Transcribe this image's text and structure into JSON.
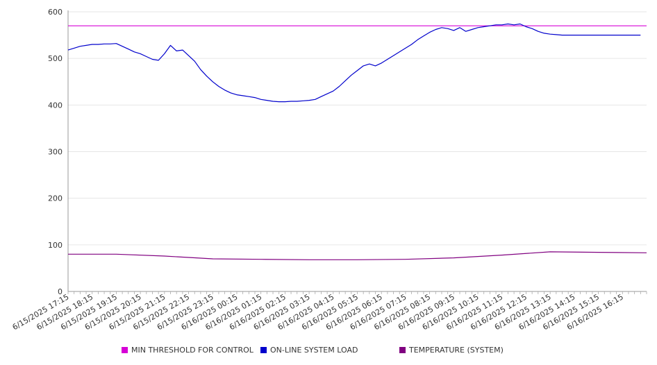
{
  "chart_data": {
    "type": "line",
    "title": "",
    "xlabel": "",
    "ylabel": "",
    "ylim": [
      0,
      600
    ],
    "yticks": [
      "0",
      "100",
      "200",
      "300",
      "400",
      "500",
      "600"
    ],
    "grid": true,
    "legend_position": "bottom",
    "x_tick_labels": [
      "6/15/2025 17:15",
      "6/15/2025 18:15",
      "6/15/2025 19:15",
      "6/15/2025 20:15",
      "6/15/2025 21:15",
      "6/15/2025 22:15",
      "6/15/2025 23:15",
      "6/16/2025 00:15",
      "6/16/2025 01:15",
      "6/16/2025 02:15",
      "6/16/2025 03:15",
      "6/16/2025 04:15",
      "6/16/2025 05:15",
      "6/16/2025 06:15",
      "6/16/2025 07:15",
      "6/16/2025 08:15",
      "6/16/2025 09:15",
      "6/16/2025 10:15",
      "6/16/2025 11:15",
      "6/16/2025 12:15",
      "6/16/2025 13:15",
      "6/16/2025 14:15",
      "6/16/2025 15:15",
      "6/16/2025 16:15"
    ],
    "series": [
      {
        "name": "MIN THRESHOLD FOR CONTROL",
        "color": "#d600d6",
        "x": [
          "6/15/2025 17:15",
          "6/16/2025 17:15"
        ],
        "values": [
          570,
          570
        ]
      },
      {
        "name": "ON-LINE SYSTEM LOAD",
        "color": "#0000cc",
        "x": [
          "6/15/2025 17:15",
          "6/15/2025 17:30",
          "6/15/2025 17:45",
          "6/15/2025 18:00",
          "6/15/2025 18:15",
          "6/15/2025 18:30",
          "6/15/2025 18:45",
          "6/15/2025 19:00",
          "6/15/2025 19:15",
          "6/15/2025 19:30",
          "6/15/2025 19:45",
          "6/15/2025 20:00",
          "6/15/2025 20:15",
          "6/15/2025 20:30",
          "6/15/2025 20:45",
          "6/15/2025 21:00",
          "6/15/2025 21:15",
          "6/15/2025 21:30",
          "6/15/2025 21:45",
          "6/15/2025 22:00",
          "6/15/2025 22:15",
          "6/15/2025 22:30",
          "6/15/2025 22:45",
          "6/15/2025 23:00",
          "6/15/2025 23:15",
          "6/15/2025 23:30",
          "6/15/2025 23:45",
          "6/16/2025 00:00",
          "6/16/2025 00:15",
          "6/16/2025 00:30",
          "6/16/2025 00:45",
          "6/16/2025 01:00",
          "6/16/2025 01:15",
          "6/16/2025 01:30",
          "6/16/2025 01:45",
          "6/16/2025 02:00",
          "6/16/2025 02:15",
          "6/16/2025 02:30",
          "6/16/2025 02:45",
          "6/16/2025 03:00",
          "6/16/2025 03:15",
          "6/16/2025 03:30",
          "6/16/2025 03:45",
          "6/16/2025 04:00",
          "6/16/2025 04:15",
          "6/16/2025 04:30",
          "6/16/2025 04:45",
          "6/16/2025 05:00",
          "6/16/2025 05:15",
          "6/16/2025 05:30",
          "6/16/2025 05:45",
          "6/16/2025 06:00",
          "6/16/2025 06:15",
          "6/16/2025 06:30",
          "6/16/2025 06:45",
          "6/16/2025 07:00",
          "6/16/2025 07:15",
          "6/16/2025 07:30",
          "6/16/2025 07:45",
          "6/16/2025 08:00",
          "6/16/2025 08:15",
          "6/16/2025 08:30",
          "6/16/2025 08:45",
          "6/16/2025 09:00",
          "6/16/2025 09:15",
          "6/16/2025 09:30",
          "6/16/2025 09:45",
          "6/16/2025 10:00",
          "6/16/2025 10:15",
          "6/16/2025 10:30",
          "6/16/2025 10:45",
          "6/16/2025 11:00",
          "6/16/2025 11:15",
          "6/16/2025 11:30",
          "6/16/2025 11:45",
          "6/16/2025 12:00",
          "6/16/2025 12:15",
          "6/16/2025 12:30",
          "6/16/2025 12:45",
          "6/16/2025 13:00",
          "6/16/2025 13:15",
          "6/16/2025 13:30",
          "6/16/2025 13:45",
          "6/16/2025 14:00",
          "6/16/2025 14:15",
          "6/16/2025 14:30",
          "6/16/2025 14:45",
          "6/16/2025 15:00",
          "6/16/2025 15:15",
          "6/16/2025 15:30",
          "6/16/2025 15:45",
          "6/16/2025 16:00",
          "6/16/2025 16:15",
          "6/16/2025 16:30",
          "6/16/2025 16:45",
          "6/16/2025 17:00"
        ],
        "values": [
          518,
          522,
          526,
          528,
          530,
          530,
          531,
          531,
          532,
          526,
          520,
          514,
          510,
          504,
          498,
          496,
          510,
          528,
          516,
          518,
          506,
          494,
          476,
          462,
          450,
          440,
          432,
          426,
          422,
          420,
          418,
          416,
          412,
          410,
          408,
          407,
          407,
          408,
          408,
          409,
          410,
          412,
          418,
          424,
          430,
          440,
          452,
          464,
          474,
          484,
          488,
          484,
          490,
          498,
          506,
          514,
          522,
          530,
          540,
          548,
          556,
          562,
          566,
          564,
          560,
          566,
          558,
          562,
          566,
          568,
          570,
          572,
          572,
          574,
          572,
          574,
          568,
          564,
          558,
          554,
          552,
          551,
          550,
          550,
          550,
          550,
          550,
          550,
          550,
          550,
          550,
          550,
          550,
          550,
          550,
          550
        ]
      },
      {
        "name": "TEMPERATURE (SYSTEM)",
        "color": "#800080",
        "x": [
          "6/15/2025 17:15",
          "6/15/2025 19:15",
          "6/15/2025 21:15",
          "6/15/2025 23:15",
          "6/16/2025 01:15",
          "6/16/2025 03:15",
          "6/16/2025 05:15",
          "6/16/2025 07:15",
          "6/16/2025 09:15",
          "6/16/2025 11:15",
          "6/16/2025 13:15",
          "6/16/2025 15:15",
          "6/16/2025 17:15"
        ],
        "values": [
          80,
          80,
          76,
          70,
          69,
          68,
          68,
          69,
          72,
          78,
          85,
          84,
          83
        ]
      }
    ]
  }
}
